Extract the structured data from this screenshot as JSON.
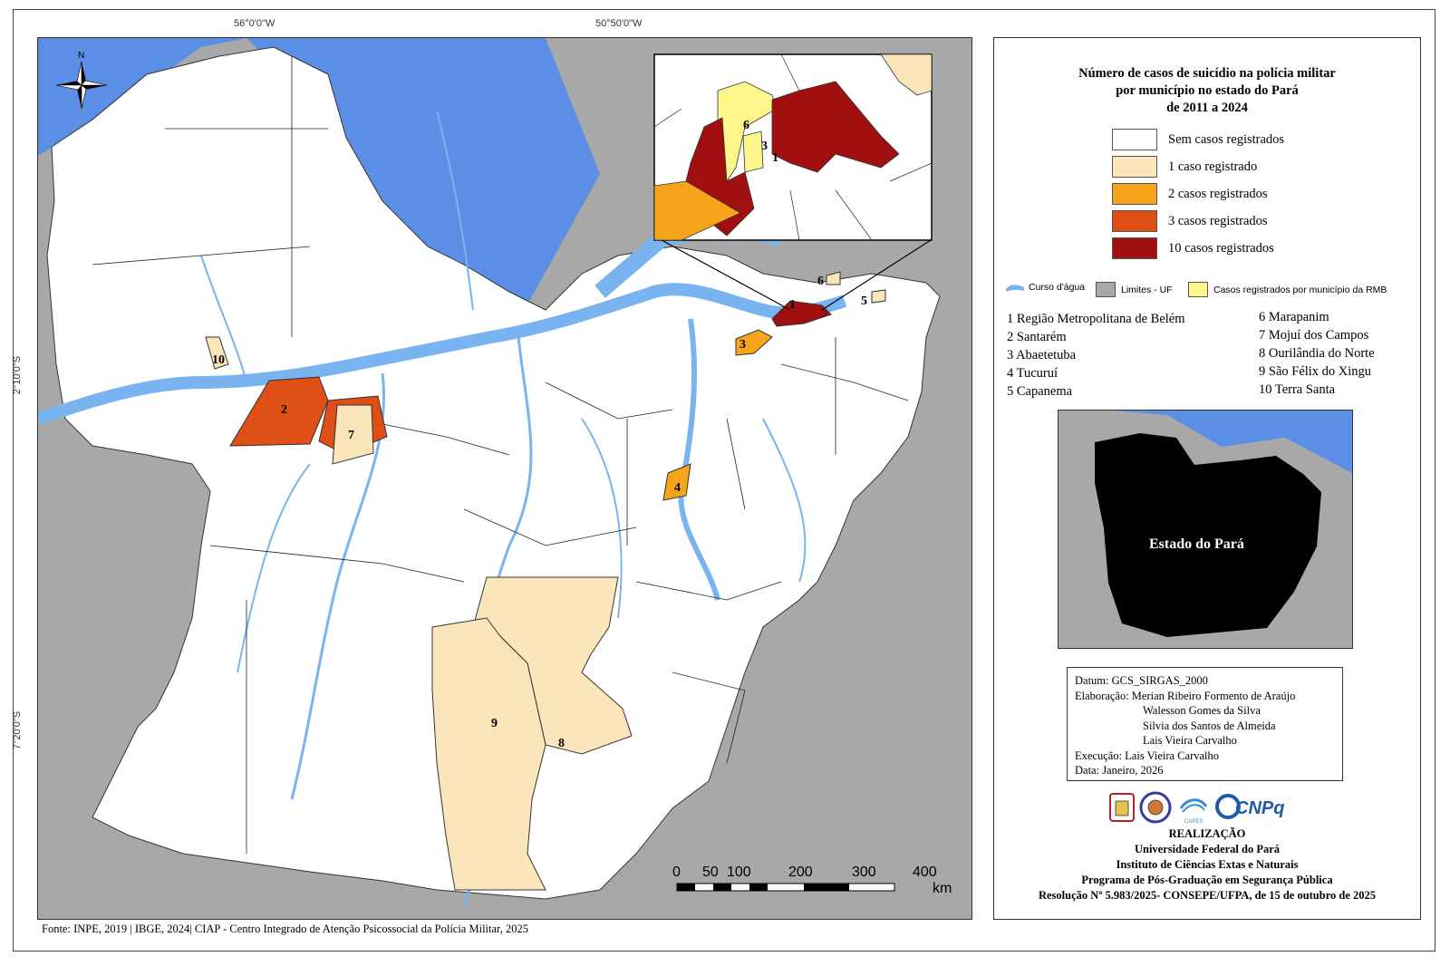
{
  "coords": {
    "top": [
      "56°0'0\"W",
      "50°50'0\"W"
    ],
    "left": [
      "2°10'0\"S",
      "7°20'0\"S"
    ]
  },
  "map": {
    "north_label": "N",
    "labels": [
      "1",
      "2",
      "3",
      "4",
      "5",
      "6",
      "7",
      "8",
      "9",
      "10"
    ],
    "inset_labels": [
      "6",
      "3",
      "1"
    ],
    "scale": {
      "ticks": [
        "0",
        "50",
        "100",
        "200",
        "300",
        "400"
      ],
      "unit": "km"
    }
  },
  "legend": {
    "title": [
      "Número de casos de suicídio na polícia militar",
      "por município no estado do Pará",
      "de 2011 a 2024"
    ],
    "classes": [
      {
        "label": "Sem casos registrados",
        "color": "#ffffff"
      },
      {
        "label": "1 caso registrado",
        "color": "#fbe6bc"
      },
      {
        "label": "2 casos registrados",
        "color": "#f6a51b"
      },
      {
        "label": "3 casos registrados",
        "color": "#de4f16"
      },
      {
        "label": "10 casos registrados",
        "color": "#a01010"
      }
    ],
    "symbols": [
      {
        "label": "Curso d'água",
        "color": "#79b4f0"
      },
      {
        "label": "Limites - UF",
        "color": "#a8a8a8"
      },
      {
        "label": "Casos registrados por município da RMB",
        "color": "#fdf68a"
      }
    ],
    "municipalities_left": [
      "1 Região Metropolitana de Belém",
      "2 Santarém",
      "3 Abaetetuba",
      "4 Tucuruí",
      "5 Capanema"
    ],
    "municipalities_right": [
      "6 Marapanim",
      "7 Mojuí dos Campos",
      "8 Ourilândia do Norte",
      "9 São Félix do Xingu",
      "10 Terra Santa"
    ],
    "locator_label": "Estado do Pará",
    "credits": {
      "datum": "Datum: GCS_SIRGAS_2000",
      "elaboracao": "Elaboração: Merian Ribeiro Formento de Araújo",
      "authors": [
        "Walesson Gomes da Silva",
        "Silvia dos Santos de Almeida",
        "Lais Vieira Carvalho"
      ],
      "execucao": "Execução: Lais Vieira Carvalho",
      "data": "Data: Janeiro, 2026"
    },
    "logos": [
      "UFPA",
      "PPGSP",
      "CAPES",
      "CNPq"
    ],
    "realizacao": [
      "REALIZAÇÃO",
      "Universidade Federal do Pará",
      "Instituto de Ciências Extas e Naturais",
      "Programa de Pós-Graduação em Segurança Pública",
      "Resolução Nº 5.983/2025- CONSEPE/UFPA, de 15 de outubro de 2025"
    ]
  },
  "source": "Fonte: INPE, 2019 | IBGE, 2024| CIAP - Centro Integrado de Atenção Psicossocial da Polícia Militar, 2025",
  "colors": {
    "water": "#79b4f0",
    "ocean": "#5b8fe5",
    "neighbor": "#a8a8a8",
    "land": "#ffffff"
  }
}
